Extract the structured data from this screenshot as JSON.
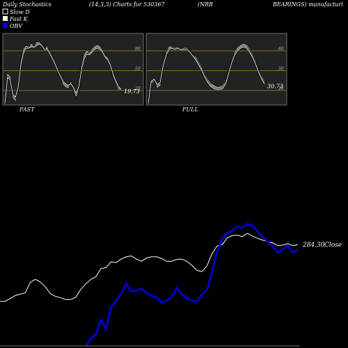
{
  "header": {
    "title": "Daily Stochastics",
    "params": "(14,3,3) Charts for 530367",
    "company_a": "(NRB",
    "company_b": "BEARINGS) manufacturi"
  },
  "legend": [
    {
      "label": "Slow  D",
      "color": "#ffffff"
    },
    {
      "label": "Fast K",
      "color": "#ffffff"
    },
    {
      "label": "OBV",
      "color": "#0000ff"
    }
  ],
  "colors": {
    "panel_bg": "#222222",
    "panel_border": "#888888",
    "level_line": "#b8860b",
    "stoch_line": "#ffffff",
    "price_line": "#ffffff",
    "obv_line": "#0000cc"
  },
  "chart_data": [
    {
      "type": "line",
      "panel": "FAST",
      "label": "FAST",
      "ylim": [
        0,
        100
      ],
      "y_ticks": [
        20,
        50,
        80
      ],
      "last_value": "19.73",
      "series": [
        {
          "values": [
            0,
            42,
            38,
            10,
            5,
            20,
            65,
            82,
            88,
            84,
            90,
            86,
            92,
            93,
            90,
            80,
            86,
            78,
            70,
            62,
            50,
            40,
            30,
            26,
            24,
            33,
            20,
            10,
            22,
            58,
            74,
            80,
            76,
            82,
            86,
            88,
            86,
            80,
            72,
            68,
            60,
            40,
            30,
            22,
            20
          ]
        },
        {
          "values": [
            0,
            44,
            40,
            12,
            8,
            22,
            62,
            80,
            87,
            85,
            88,
            86,
            90,
            92,
            89,
            82,
            84,
            78,
            70,
            62,
            52,
            42,
            32,
            28,
            26,
            32,
            22,
            12,
            24,
            56,
            72,
            78,
            76,
            80,
            84,
            86,
            84,
            80,
            72,
            68,
            60,
            42,
            32,
            24,
            21
          ]
        },
        {
          "values": [
            0,
            40,
            36,
            14,
            10,
            24,
            58,
            76,
            84,
            84,
            86,
            85,
            88,
            90,
            88,
            82,
            82,
            76,
            68,
            60,
            50,
            42,
            34,
            30,
            28,
            30,
            24,
            16,
            26,
            52,
            68,
            75,
            74,
            78,
            82,
            84,
            82,
            78,
            70,
            66,
            58,
            44,
            34,
            26,
            22
          ]
        }
      ]
    },
    {
      "type": "line",
      "panel": "FULL",
      "label": "FULL",
      "ylim": [
        0,
        100
      ],
      "y_ticks": [
        20,
        50,
        80
      ],
      "last_value": "30.73",
      "series": [
        {
          "values": [
            0,
            30,
            35,
            25,
            28,
            55,
            78,
            86,
            86,
            84,
            86,
            83,
            84,
            84,
            80,
            74,
            70,
            62,
            54,
            44,
            36,
            30,
            27,
            25,
            25,
            27,
            34,
            50,
            66,
            78,
            84,
            88,
            90,
            88,
            82,
            74,
            64,
            52,
            42,
            34
          ]
        },
        {
          "values": [
            0,
            32,
            36,
            27,
            30,
            56,
            76,
            84,
            85,
            83,
            85,
            82,
            83,
            83,
            79,
            73,
            68,
            60,
            52,
            42,
            34,
            28,
            25,
            23,
            23,
            25,
            32,
            48,
            64,
            76,
            82,
            86,
            88,
            86,
            80,
            72,
            62,
            50,
            40,
            32
          ]
        },
        {
          "values": [
            0,
            34,
            37,
            29,
            32,
            57,
            74,
            82,
            84,
            82,
            84,
            81,
            82,
            82,
            78,
            72,
            66,
            58,
            50,
            40,
            32,
            26,
            23,
            21,
            21,
            23,
            30,
            46,
            62,
            74,
            80,
            84,
            86,
            84,
            78,
            70,
            60,
            48,
            38,
            30
          ]
        }
      ]
    },
    {
      "type": "line",
      "panel": "price-obv",
      "series": [
        {
          "name": "Close",
          "last_value": "284.30",
          "values": [
            0,
            0,
            6,
            13,
            16,
            19,
            42,
            49,
            43,
            32,
            17,
            11,
            8,
            4,
            4,
            9,
            27,
            39,
            49,
            55,
            73,
            75,
            88,
            86,
            94,
            99,
            101,
            94,
            89,
            96,
            99,
            99,
            95,
            89,
            89,
            93,
            94,
            89,
            80,
            69,
            66,
            79,
            106,
            123,
            126,
            141,
            146,
            147,
            144,
            151,
            145,
            140,
            136,
            133,
            130,
            124,
            125,
            128,
            124,
            126
          ]
        },
        {
          "name": "OBV",
          "values": [
            null,
            null,
            null,
            null,
            null,
            null,
            null,
            null,
            null,
            null,
            null,
            null,
            null,
            null,
            null,
            null,
            null,
            0,
            10,
            16,
            36,
            24,
            54,
            63,
            72,
            87,
            76,
            77,
            80,
            74,
            70,
            68,
            60,
            63,
            68,
            81,
            72,
            67,
            63,
            62,
            72,
            78,
            103,
            131,
            149,
            158,
            161,
            167,
            165,
            170,
            168,
            160,
            152,
            146,
            139,
            130,
            135,
            140,
            130,
            134
          ]
        }
      ]
    }
  ]
}
